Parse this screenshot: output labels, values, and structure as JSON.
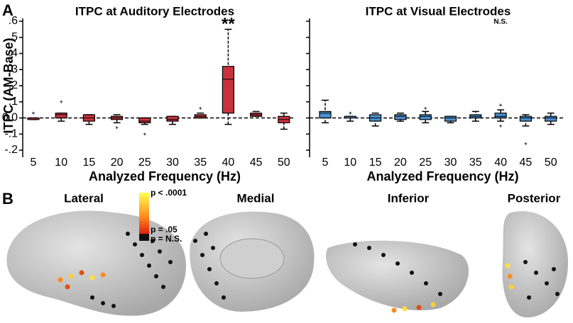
{
  "panel_labels": [
    "A",
    "B"
  ],
  "chart_data": [
    {
      "type": "box",
      "title": "ITPC at Auditory Electrodes",
      "xlabel": "Analyzed Frequency (Hz)",
      "ylabel": "ITPC (AM-Base)",
      "color": "#c8323c",
      "zero_line": true,
      "show_ytick_labels": true,
      "categories": [
        5,
        10,
        15,
        20,
        25,
        30,
        35,
        40,
        45,
        50
      ],
      "ylim": [
        -0.2,
        0.6
      ],
      "yticks": [
        {
          "value": -0.2,
          "label": "-.2"
        },
        {
          "value": -0.1,
          "label": "-.1"
        },
        {
          "value": 0,
          "label": "0.0"
        },
        {
          "value": 0.1,
          "label": ".1"
        },
        {
          "value": 0.2,
          "label": ".2"
        },
        {
          "value": 0.3,
          "label": ".3"
        },
        {
          "value": 0.4,
          "label": ".4"
        },
        {
          "value": 0.5,
          "label": ".5"
        },
        {
          "value": 0.6,
          "label": ".6"
        }
      ],
      "boxes": [
        {
          "low": -0.01,
          "q1": -0.01,
          "median": 0,
          "q3": 0,
          "high": 0,
          "outliers": [
            0.03
          ]
        },
        {
          "low": -0.02,
          "q1": 0,
          "median": 0.02,
          "q3": 0.03,
          "high": 0.03,
          "outliers": [
            0.1
          ]
        },
        {
          "low": -0.04,
          "q1": -0.02,
          "median": 0,
          "q3": 0.02,
          "high": 0.02,
          "outliers": []
        },
        {
          "low": -0.03,
          "q1": -0.01,
          "median": 0,
          "q3": 0.01,
          "high": 0.02,
          "outliers": [
            -0.06
          ]
        },
        {
          "low": -0.04,
          "q1": -0.03,
          "median": -0.02,
          "q3": 0,
          "high": 0,
          "outliers": [
            -0.1
          ]
        },
        {
          "low": -0.04,
          "q1": -0.02,
          "median": -0.01,
          "q3": 0.01,
          "high": 0.01,
          "outliers": []
        },
        {
          "low": 0,
          "q1": 0,
          "median": 0.01,
          "q3": 0.02,
          "high": 0.03,
          "outliers": [
            0.06
          ]
        },
        {
          "low": -0.04,
          "q1": 0.03,
          "median": 0.24,
          "q3": 0.32,
          "high": 0.55,
          "outliers": []
        },
        {
          "low": 0.01,
          "q1": 0.01,
          "median": 0.02,
          "q3": 0.03,
          "high": 0.04,
          "outliers": []
        },
        {
          "low": -0.07,
          "q1": -0.03,
          "median": -0.01,
          "q3": 0.01,
          "high": 0.03,
          "outliers": []
        }
      ],
      "annotations": [
        {
          "text": "**",
          "x": 40
        }
      ]
    },
    {
      "type": "box",
      "title": "ITPC at Visual Electrodes",
      "xlabel": "Analyzed Frequency (Hz)",
      "color": "#4a90d0",
      "zero_line": true,
      "show_ytick_labels": false,
      "categories": [
        5,
        10,
        15,
        20,
        25,
        30,
        35,
        40,
        45,
        50
      ],
      "ylim": [
        -0.2,
        0.6
      ],
      "yticks": [
        -0.2,
        -0.1,
        0,
        0.1,
        0.2,
        0.3,
        0.4,
        0.5,
        0.6
      ],
      "boxes": [
        {
          "low": -0.03,
          "q1": 0,
          "median": 0.03,
          "q3": 0.04,
          "high": 0.11,
          "outliers": []
        },
        {
          "low": -0.02,
          "q1": 0,
          "median": 0,
          "q3": 0.01,
          "high": 0.01,
          "outliers": [
            0.03
          ]
        },
        {
          "low": -0.05,
          "q1": -0.02,
          "median": 0,
          "q3": 0.02,
          "high": 0.03,
          "outliers": []
        },
        {
          "low": -0.02,
          "q1": -0.01,
          "median": 0.01,
          "q3": 0.02,
          "high": 0.03,
          "outliers": []
        },
        {
          "low": -0.03,
          "q1": -0.01,
          "median": 0.01,
          "q3": 0.02,
          "high": 0.04,
          "outliers": [
            0.06
          ]
        },
        {
          "low": -0.03,
          "q1": -0.02,
          "median": 0,
          "q3": 0.01,
          "high": 0.01,
          "outliers": []
        },
        {
          "low": -0.02,
          "q1": 0,
          "median": 0.01,
          "q3": 0.02,
          "high": 0.04,
          "outliers": []
        },
        {
          "low": -0.02,
          "q1": 0,
          "median": 0.01,
          "q3": 0.03,
          "high": 0.05,
          "outliers": [
            0.08,
            -0.05
          ]
        },
        {
          "low": -0.05,
          "q1": -0.02,
          "median": 0,
          "q3": 0.01,
          "high": 0.02,
          "outliers": [
            -0.16
          ]
        },
        {
          "low": -0.04,
          "q1": -0.02,
          "median": 0,
          "q3": 0.01,
          "high": 0.03,
          "outliers": []
        }
      ],
      "annotations": [
        {
          "text": "N.S.",
          "x": 40
        }
      ]
    }
  ],
  "brain_views": [
    "Lateral",
    "Medial",
    "Inferior",
    "Posterior"
  ],
  "colorbar_labels": [
    "p < .0001",
    "p = .05",
    "p = N.S."
  ]
}
